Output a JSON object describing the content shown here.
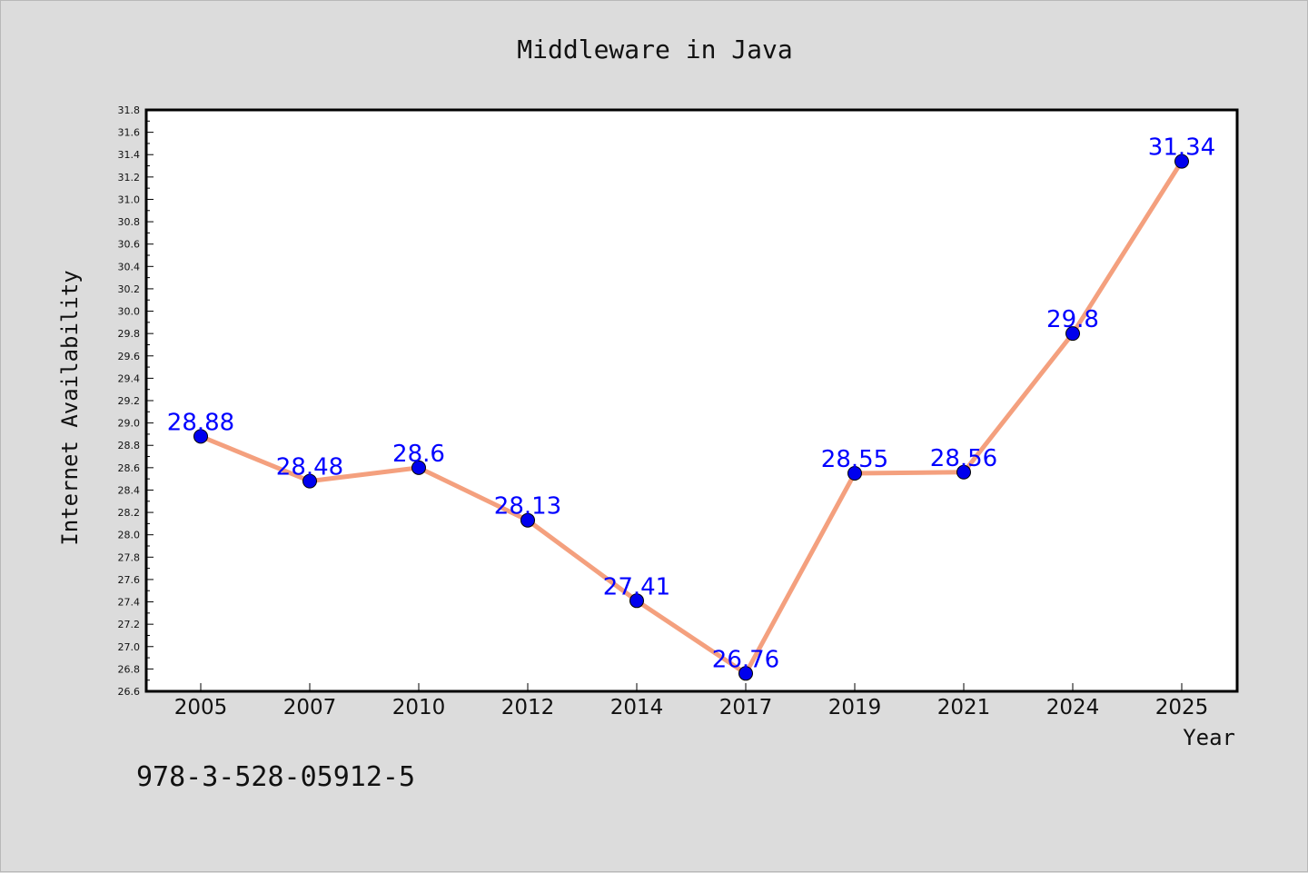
{
  "chart_data": {
    "type": "line",
    "title": "Middleware in Java",
    "xlabel": "Year",
    "ylabel": "Internet Availability",
    "categories": [
      "2005",
      "2007",
      "2010",
      "2012",
      "2014",
      "2017",
      "2019",
      "2021",
      "2024",
      "2025"
    ],
    "series": [
      {
        "values": [
          28.88,
          28.48,
          28.6,
          28.13,
          27.41,
          26.76,
          28.55,
          28.56,
          29.8,
          31.34
        ],
        "labels": [
          "28.88",
          "28.48",
          "28.6",
          "28.13",
          "27.41",
          "26.76",
          "28.55",
          "28.56",
          "29.8",
          "31.34"
        ]
      }
    ],
    "ylim": [
      26.6,
      31.8
    ],
    "ytick_step": 0.2,
    "grid": false,
    "legend": "none",
    "colors": {
      "line": "#f4a07e",
      "marker": "#0000ee",
      "data_label": "#0000ff",
      "plot_background": "#ffffff",
      "page_background": "#dcdcdc"
    }
  },
  "footer": {
    "isbn": "978-3-528-05912-5"
  }
}
